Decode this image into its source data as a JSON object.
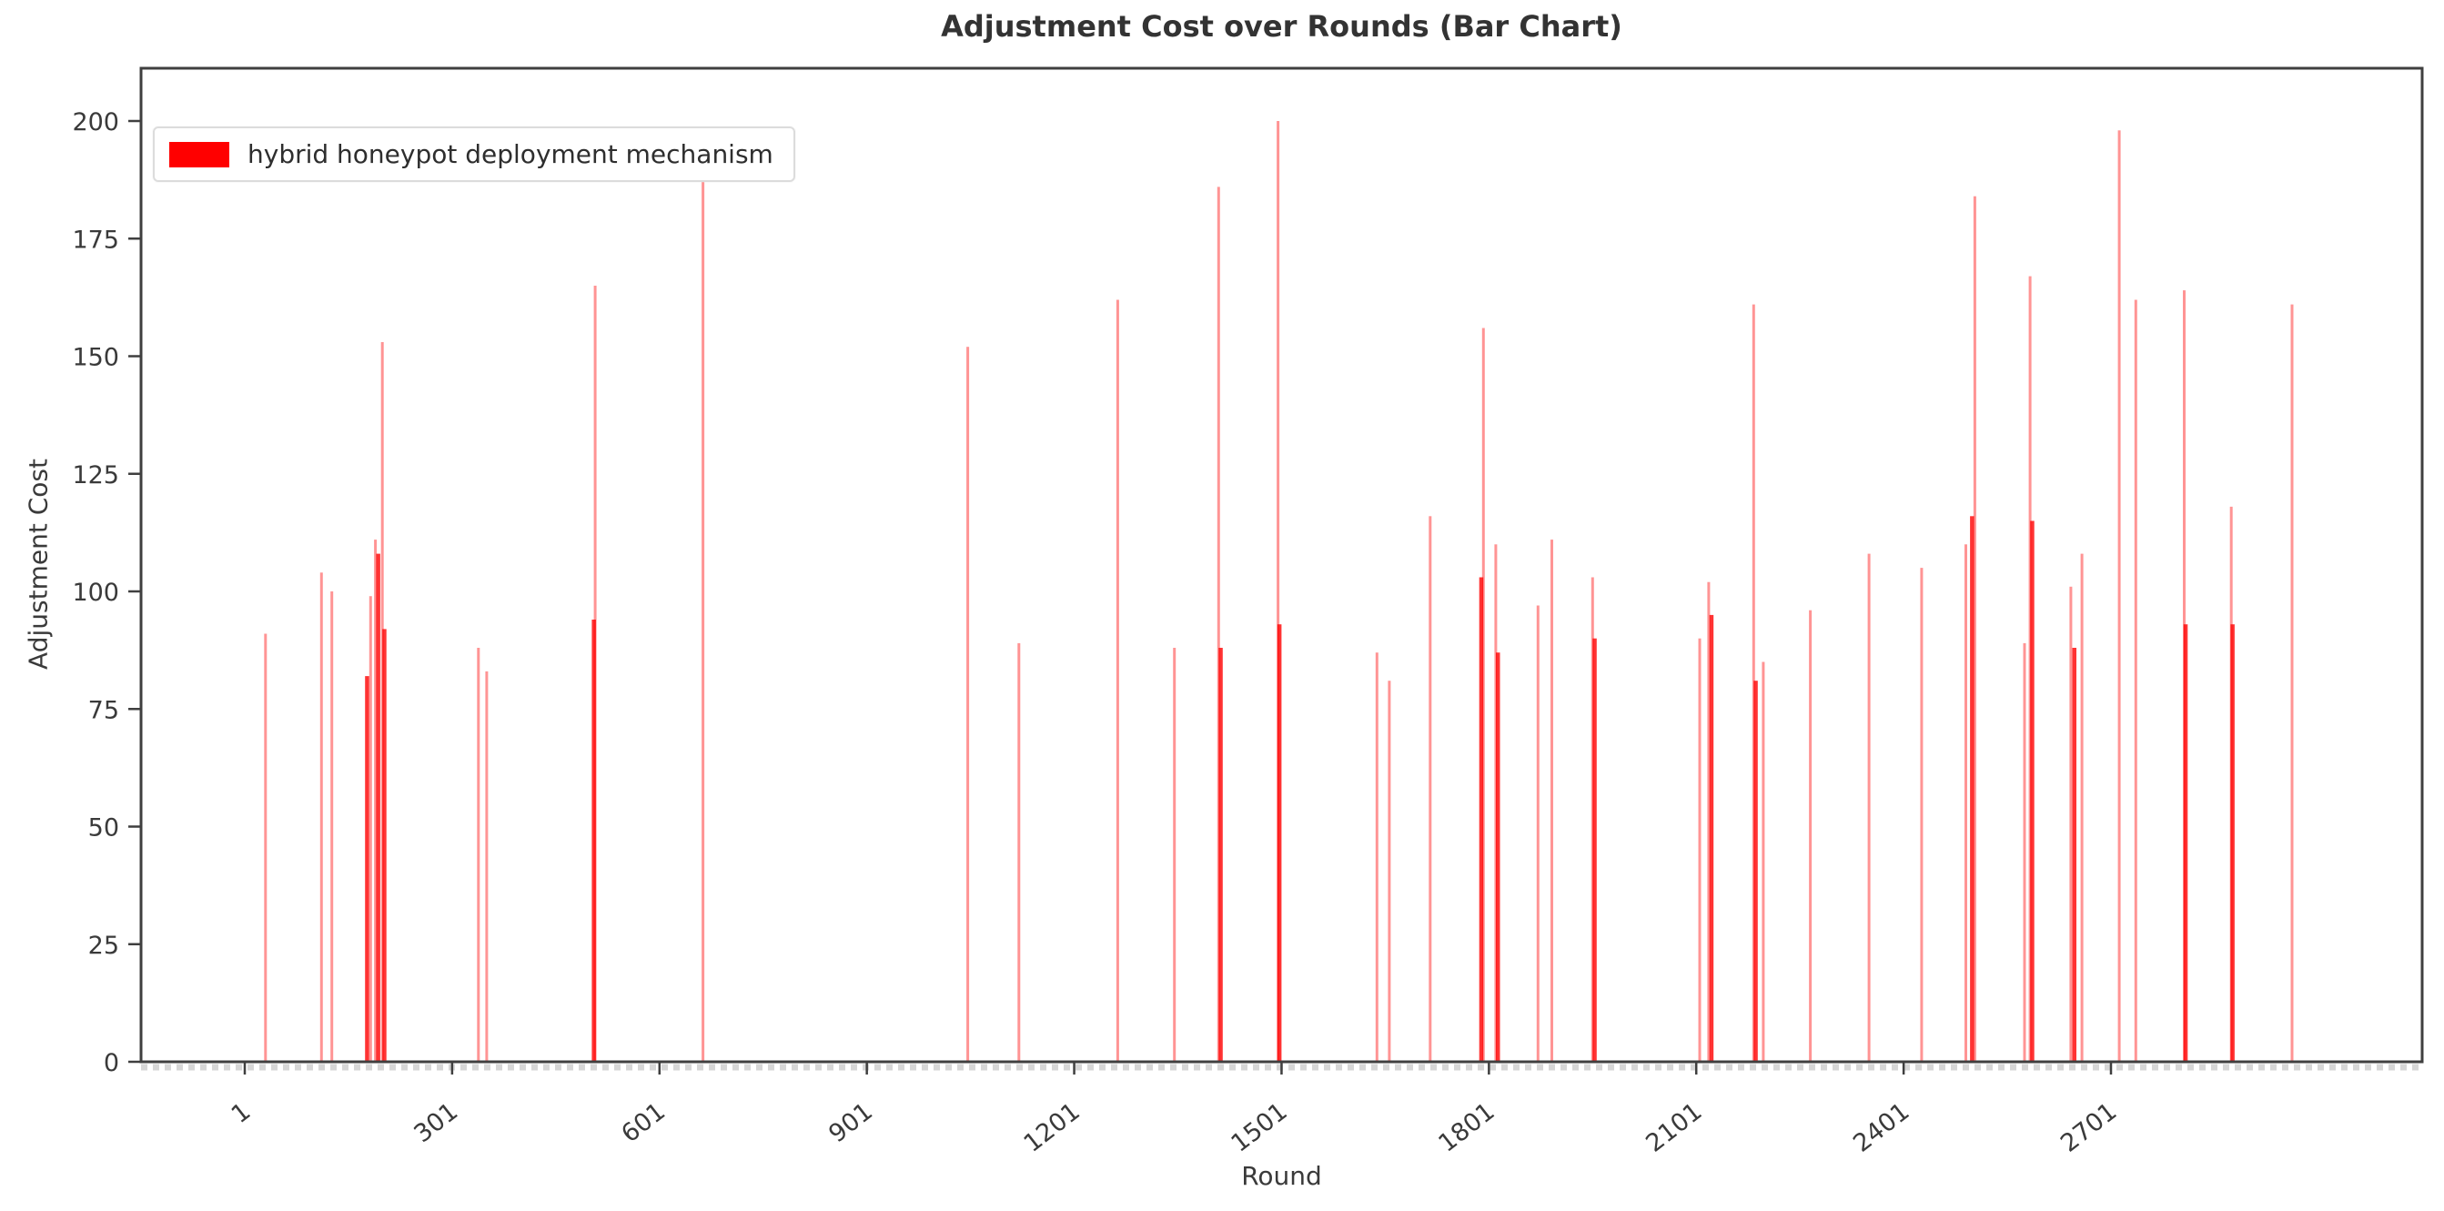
{
  "figure": {
    "title": "Adjustment Cost over Rounds (Bar Chart)",
    "xlabel": "Round",
    "ylabel": "Adjustment Cost",
    "legend": {
      "label": "hybrid honeypot deployment mechanism",
      "swatch_color": "#ff0000"
    }
  },
  "colors": {
    "bar": "#ff0000",
    "axis": "#3f3f3f",
    "tick_text": "#3a3a3a",
    "baseline_band": "#c9c9c9"
  },
  "chart_data": {
    "type": "bar",
    "title": "Adjustment Cost over Rounds (Bar Chart)",
    "xlabel": "Round",
    "ylabel": "Adjustment Cost",
    "legend_entries": [
      "hybrid honeypot deployment mechanism"
    ],
    "legend_position": "upper left",
    "grid": false,
    "xlim": [
      -149,
      3151
    ],
    "ylim": [
      0,
      211
    ],
    "x_ticks": [
      1,
      301,
      601,
      901,
      1201,
      1501,
      1801,
      2101,
      2401,
      2701
    ],
    "y_ticks": [
      0,
      25,
      50,
      75,
      100,
      125,
      150,
      175,
      200
    ],
    "series": [
      {
        "name": "hybrid honeypot deployment mechanism",
        "color": "#ff0000",
        "light_alpha": 0.42,
        "dark_alpha": 0.8,
        "points": [
          [
            31,
            91,
            "l"
          ],
          [
            112,
            104,
            "l"
          ],
          [
            127,
            100,
            "l"
          ],
          [
            178,
            82,
            "d"
          ],
          [
            183,
            99,
            "l"
          ],
          [
            190,
            111,
            "l"
          ],
          [
            194,
            108,
            "d"
          ],
          [
            200,
            153,
            "l"
          ],
          [
            203,
            92,
            "d"
          ],
          [
            339,
            88,
            "l"
          ],
          [
            351,
            83,
            "l"
          ],
          [
            506,
            94,
            "d"
          ],
          [
            508,
            165,
            "l"
          ],
          [
            664,
            187,
            "l"
          ],
          [
            1047,
            152,
            "l"
          ],
          [
            1121,
            89,
            "l"
          ],
          [
            1264,
            162,
            "l"
          ],
          [
            1346,
            88,
            "l"
          ],
          [
            1410,
            186,
            "l"
          ],
          [
            1413,
            88,
            "d"
          ],
          [
            1496,
            200,
            "l"
          ],
          [
            1498,
            93,
            "d"
          ],
          [
            1639,
            87,
            "l"
          ],
          [
            1657,
            81,
            "l"
          ],
          [
            1716,
            116,
            "l"
          ],
          [
            1790,
            103,
            "d"
          ],
          [
            1793,
            156,
            "l"
          ],
          [
            1811,
            110,
            "l"
          ],
          [
            1814,
            87,
            "d"
          ],
          [
            1872,
            97,
            "l"
          ],
          [
            1892,
            111,
            "l"
          ],
          [
            1951,
            103,
            "l"
          ],
          [
            1954,
            90,
            "d"
          ],
          [
            2106,
            90,
            "l"
          ],
          [
            2119,
            102,
            "l"
          ],
          [
            2123,
            95,
            "d"
          ],
          [
            2184,
            161,
            "l"
          ],
          [
            2187,
            81,
            "d"
          ],
          [
            2198,
            85,
            "l"
          ],
          [
            2266,
            96,
            "l"
          ],
          [
            2351,
            108,
            "l"
          ],
          [
            2427,
            105,
            "l"
          ],
          [
            2491,
            110,
            "l"
          ],
          [
            2500,
            116,
            "d"
          ],
          [
            2504,
            184,
            "l"
          ],
          [
            2576,
            89,
            "l"
          ],
          [
            2584,
            167,
            "l"
          ],
          [
            2587,
            115,
            "d"
          ],
          [
            2643,
            101,
            "l"
          ],
          [
            2648,
            88,
            "d"
          ],
          [
            2659,
            108,
            "l"
          ],
          [
            2713,
            198,
            "l"
          ],
          [
            2737,
            162,
            "l"
          ],
          [
            2807,
            164,
            "l"
          ],
          [
            2809,
            93,
            "d"
          ],
          [
            2875,
            118,
            "l"
          ],
          [
            2877,
            93,
            "d"
          ],
          [
            2963,
            161,
            "l"
          ]
        ]
      }
    ]
  }
}
